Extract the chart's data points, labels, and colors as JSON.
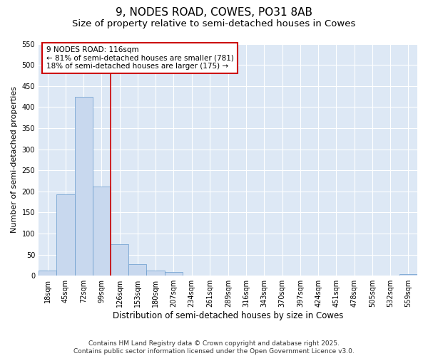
{
  "title": "9, NODES ROAD, COWES, PO31 8AB",
  "subtitle": "Size of property relative to semi-detached houses in Cowes",
  "xlabel": "Distribution of semi-detached houses by size in Cowes",
  "ylabel": "Number of semi-detached properties",
  "bins": [
    18,
    45,
    72,
    99,
    126,
    153,
    180,
    207,
    234,
    261,
    289,
    316,
    343,
    370,
    397,
    424,
    451,
    478,
    505,
    532,
    559
  ],
  "counts": [
    12,
    193,
    425,
    211,
    75,
    27,
    12,
    8,
    0,
    0,
    0,
    0,
    0,
    0,
    0,
    0,
    0,
    0,
    0,
    0,
    3
  ],
  "bar_color": "#c8d8ee",
  "bar_edge_color": "#6699cc",
  "vline_x": 112.5,
  "vline_color": "#cc0000",
  "ylim": [
    0,
    550
  ],
  "yticks": [
    0,
    50,
    100,
    150,
    200,
    250,
    300,
    350,
    400,
    450,
    500,
    550
  ],
  "annotation_title": "9 NODES ROAD: 116sqm",
  "annotation_line1": "← 81% of semi-detached houses are smaller (781)",
  "annotation_line2": "18% of semi-detached houses are larger (175) →",
  "annotation_box_color": "#cc0000",
  "footer_line1": "Contains HM Land Registry data © Crown copyright and database right 2025.",
  "footer_line2": "Contains public sector information licensed under the Open Government Licence v3.0.",
  "plot_bg_color": "#dde8f5",
  "fig_bg_color": "#ffffff",
  "grid_color": "#ffffff",
  "title_fontsize": 11,
  "subtitle_fontsize": 9.5,
  "xlabel_fontsize": 8.5,
  "ylabel_fontsize": 8,
  "tick_fontsize": 7,
  "annotation_fontsize": 7.5,
  "footer_fontsize": 6.5
}
